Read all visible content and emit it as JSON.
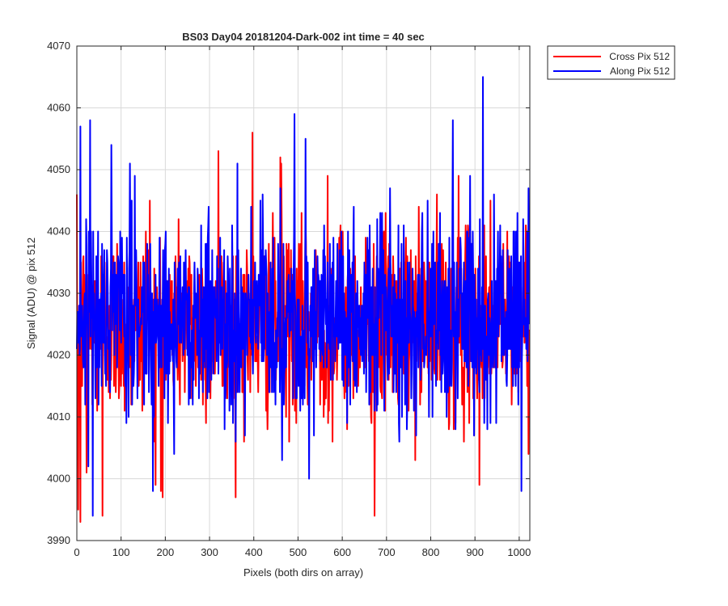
{
  "chart_data": {
    "type": "line",
    "title": "BS03 Day04 20181204-Dark-002 int time = 40 sec",
    "xlabel": "Pixels (both dirs on array)",
    "ylabel": "Signal (ADU) @ pix 512",
    "xlim": [
      0,
      1024
    ],
    "ylim": [
      3990,
      4070
    ],
    "xticks": [
      0,
      100,
      200,
      300,
      400,
      500,
      600,
      700,
      800,
      900,
      1000
    ],
    "yticks": [
      3990,
      4000,
      4010,
      4020,
      4030,
      4040,
      4050,
      4060,
      4070
    ],
    "grid": true,
    "legend_placement": "outside-top-right",
    "series": [
      {
        "name": "Cross Pix 512",
        "color": "#ff0000",
        "n_points": 1024,
        "mean": 4025,
        "std": 7.5,
        "min": 3993,
        "max": 4056,
        "peaks": [
          [
            3,
            3995
          ],
          [
            8,
            3993
          ],
          [
            22,
            4001
          ],
          [
            26,
            4033
          ],
          [
            58,
            3994
          ],
          [
            156,
            4040
          ],
          [
            165,
            4045
          ],
          [
            178,
            3999
          ],
          [
            190,
            3998
          ],
          [
            320,
            4053
          ],
          [
            397,
            4056
          ],
          [
            460,
            4052
          ],
          [
            462,
            4051
          ],
          [
            567,
            4049
          ],
          [
            673,
            3994
          ],
          [
            863,
            4049
          ],
          [
            910,
            3999
          ],
          [
            935,
            4045
          ],
          [
            1015,
            4041
          ]
        ]
      },
      {
        "name": "Along Pix 512",
        "color": "#0000ff",
        "n_points": 1024,
        "mean": 4026,
        "std": 8,
        "min": 3994,
        "max": 4065,
        "peaks": [
          [
            8,
            4057
          ],
          [
            30,
            4058
          ],
          [
            36,
            3994
          ],
          [
            120,
            4051
          ],
          [
            363,
            4051
          ],
          [
            460,
            4047
          ],
          [
            492,
            4059
          ],
          [
            517,
            4055
          ],
          [
            525,
            4000
          ],
          [
            850,
            4058
          ],
          [
            918,
            4065
          ],
          [
            1005,
            3998
          ]
        ]
      }
    ]
  }
}
